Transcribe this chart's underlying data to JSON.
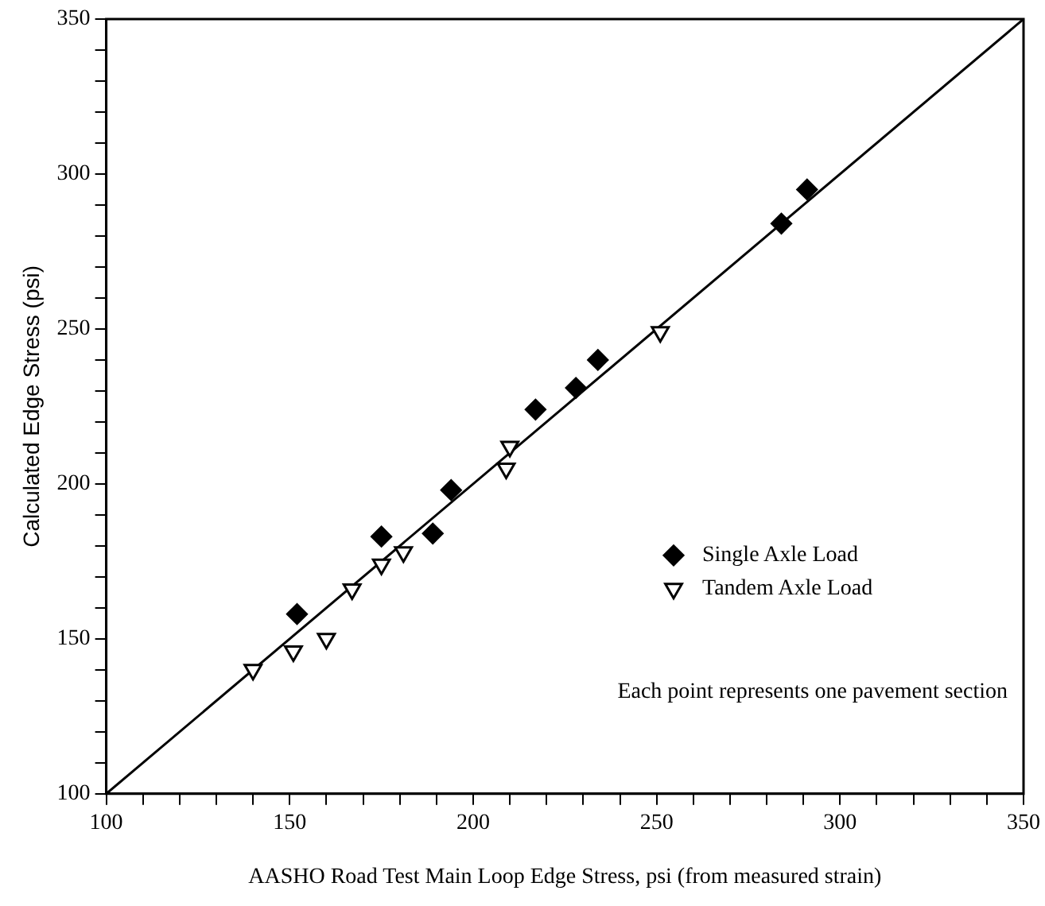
{
  "chart_data": {
    "type": "scatter",
    "xlabel": "AASHO Road Test Main Loop Edge Stress, psi (from measured strain)",
    "ylabel": "Calculated Edge Stress (psi)",
    "xlim": [
      100,
      350
    ],
    "ylim": [
      100,
      350
    ],
    "xticks": [
      100,
      {
        "value": 110,
        "label": null
      },
      {
        "value": 120,
        "label": null
      },
      {
        "value": 130,
        "label": null
      },
      {
        "value": 140,
        "label": null
      },
      150,
      {
        "value": 160,
        "label": null
      },
      {
        "value": 170,
        "label": null
      },
      {
        "value": 180,
        "label": null
      },
      {
        "value": 190,
        "label": null
      },
      200,
      {
        "value": 210,
        "label": null
      },
      {
        "value": 220,
        "label": null
      },
      {
        "value": 230,
        "label": null
      },
      {
        "value": 240,
        "label": null
      },
      250,
      {
        "value": 260,
        "label": null
      },
      {
        "value": 270,
        "label": null
      },
      {
        "value": 280,
        "label": null
      },
      {
        "value": 290,
        "label": null
      },
      300,
      {
        "value": 310,
        "label": null
      },
      {
        "value": 320,
        "label": null
      },
      {
        "value": 330,
        "label": null
      },
      {
        "value": 340,
        "label": null
      },
      350
    ],
    "yticks": [
      100,
      {
        "value": 110,
        "label": null
      },
      {
        "value": 120,
        "label": null
      },
      {
        "value": 130,
        "label": null
      },
      {
        "value": 140,
        "label": null
      },
      150,
      {
        "value": 160,
        "label": null
      },
      {
        "value": 170,
        "label": null
      },
      {
        "value": 180,
        "label": null
      },
      {
        "value": 190,
        "label": null
      },
      200,
      {
        "value": 210,
        "label": null
      },
      {
        "value": 220,
        "label": null
      },
      {
        "value": 230,
        "label": null
      },
      {
        "value": 240,
        "label": null
      },
      250,
      {
        "value": 260,
        "label": null
      },
      {
        "value": 270,
        "label": null
      },
      {
        "value": 280,
        "label": null
      },
      {
        "value": 290,
        "label": null
      },
      300,
      {
        "value": 310,
        "label": null
      },
      {
        "value": 320,
        "label": null
      },
      {
        "value": 330,
        "label": null
      },
      {
        "value": 340,
        "label": null
      },
      350
    ],
    "grid": false,
    "legend": "bottom right",
    "annotations": [
      "Each point represents one pavement section"
    ],
    "series": [
      {
        "name": "Single Axle Load",
        "color": "#000000",
        "marker": "diamond",
        "x": [
          152,
          175,
          189,
          194,
          217,
          228,
          234,
          284,
          291
        ],
        "values": [
          158,
          183,
          184,
          198,
          224,
          231,
          240,
          284,
          295
        ]
      },
      {
        "name": "Tandem Axle Load",
        "color": "#000000",
        "marker": "triangle",
        "x": [
          140,
          151,
          160,
          167,
          175,
          181,
          209,
          210,
          251
        ],
        "values": [
          140,
          146,
          150,
          166,
          174,
          178,
          205,
          212,
          249
        ]
      },
      {
        "type": "line",
        "color": "#000000",
        "x": [
          100,
          350
        ],
        "values": [
          100,
          350
        ]
      }
    ]
  }
}
